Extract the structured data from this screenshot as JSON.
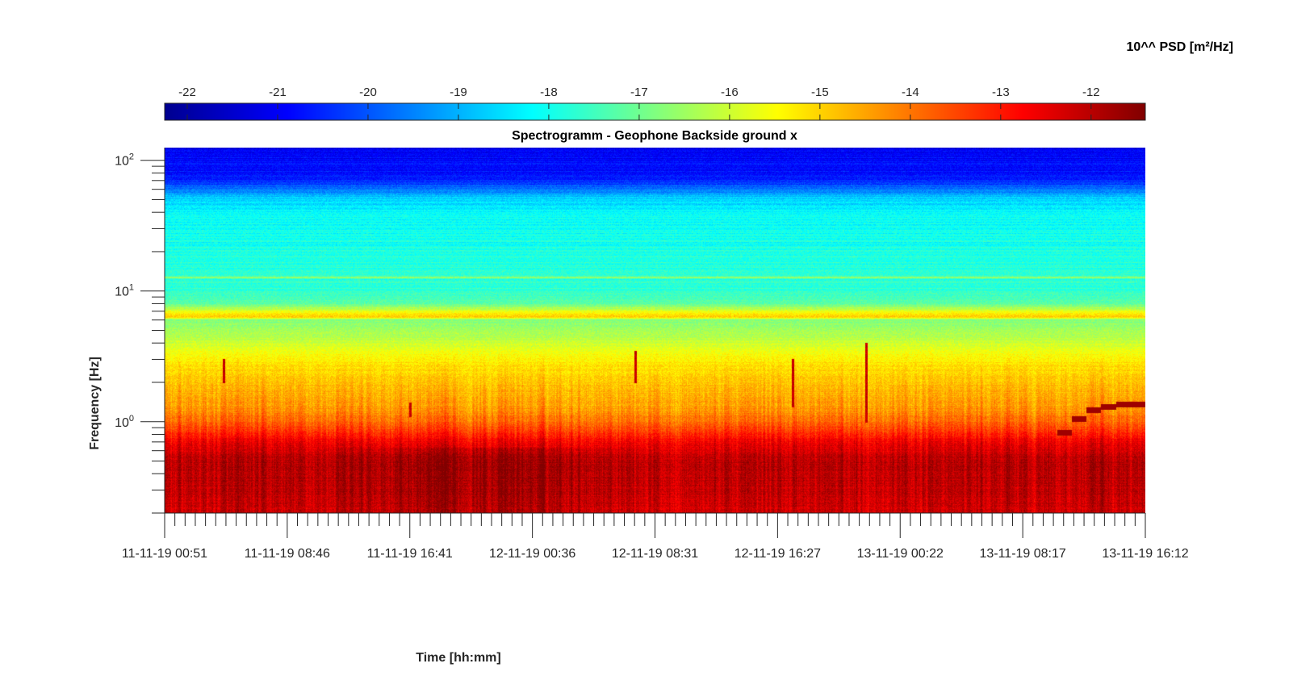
{
  "chart_data": {
    "type": "heatmap",
    "title": "Spectrogramm - Geophone Backside ground x",
    "xlabel": "Time [hh:mm]",
    "ylabel": "Frequency [Hz]",
    "y_scale": "log",
    "ylim": [
      0.2,
      125
    ],
    "y_ticks": [
      {
        "value": 100,
        "base": "10",
        "exp": "2"
      },
      {
        "value": 10,
        "base": "10",
        "exp": "1"
      },
      {
        "value": 1,
        "base": "10",
        "exp": "0"
      }
    ],
    "x_tick_labels": [
      "11-11-19 00:51",
      "11-11-19 08:46",
      "11-11-19 16:41",
      "12-11-19 00:36",
      "12-11-19 08:31",
      "12-11-19 16:27",
      "13-11-19 00:22",
      "13-11-19 08:17",
      "13-11-19 16:12"
    ],
    "colorbar": {
      "label": "10^^ PSD [m²/Hz]",
      "colormap": "jet",
      "clim": [
        -22.25,
        -11.4
      ],
      "ticks": [
        -22,
        -21,
        -20,
        -19,
        -18,
        -17,
        -16,
        -15,
        -14,
        -13,
        -12
      ],
      "location": "top"
    },
    "psd_profile": {
      "description_units": "log10 PSD [m²/Hz] vs frequency [Hz]",
      "frequency": [
        0.2,
        0.3,
        0.5,
        0.7,
        0.85,
        1.0,
        1.3,
        2.0,
        3.0,
        4.5,
        6.0,
        6.4,
        8.0,
        10.0,
        13.0,
        18.0,
        25.0,
        35.0,
        50.0,
        70.0,
        100.0,
        125.0
      ],
      "log_psd": [
        -12.3,
        -12.1,
        -12.0,
        -12.6,
        -13.3,
        -13.9,
        -14.4,
        -14.8,
        -15.3,
        -16.3,
        -16.8,
        -14.8,
        -17.2,
        -17.6,
        -17.7,
        -17.9,
        -18.0,
        -18.1,
        -18.6,
        -20.6,
        -20.9,
        -21.0
      ]
    },
    "tonal_lines": [
      {
        "frequency": 6.4,
        "log_psd": -15.0
      },
      {
        "frequency": 12.8,
        "log_psd": -16.3
      }
    ],
    "events": [
      {
        "time_fraction": 0.06,
        "freq_range": [
          2.0,
          3.0
        ]
      },
      {
        "time_fraction": 0.25,
        "freq_range": [
          1.1,
          1.4
        ]
      },
      {
        "time_fraction": 0.48,
        "freq_range": [
          2.0,
          3.5
        ]
      },
      {
        "time_fraction": 0.64,
        "freq_range": [
          1.3,
          3.0
        ]
      },
      {
        "time_fraction": 0.715,
        "freq_range": [
          1.0,
          4.0
        ]
      }
    ],
    "drifting_tone": [
      {
        "time_start": 0.91,
        "time_end": 0.925,
        "frequency": 0.83
      },
      {
        "time_start": 0.925,
        "time_end": 0.94,
        "frequency": 1.05
      },
      {
        "time_start": 0.94,
        "time_end": 0.955,
        "frequency": 1.23
      },
      {
        "time_start": 0.955,
        "time_end": 0.97,
        "frequency": 1.31
      },
      {
        "time_start": 0.97,
        "time_end": 1.0,
        "frequency": 1.37
      }
    ],
    "grid": false
  },
  "colors": {
    "axis": "#262626",
    "title": "#000000"
  }
}
